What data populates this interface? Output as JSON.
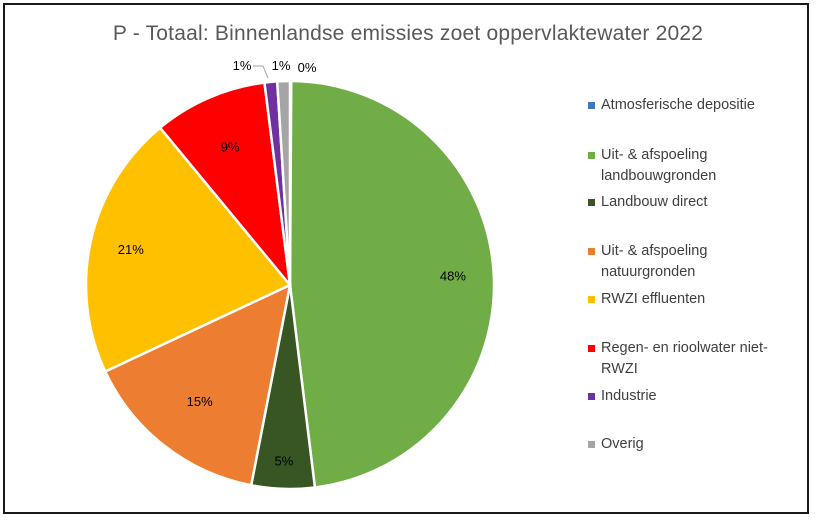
{
  "chart_data": {
    "type": "pie",
    "title": "P - Totaal: Binnenlandse emissies zoet oppervlaktewater 2022",
    "legend_position": "right",
    "slices": [
      {
        "name": "Atmosferische depositie",
        "value": 0.1,
        "label": "0%",
        "color": "#4472C4"
      },
      {
        "name": "Uit- & afspoeling landbouwgronden",
        "value": 48,
        "label": "48%",
        "color": "#70AD47"
      },
      {
        "name": "Landbouw direct",
        "value": 5,
        "label": "5%",
        "color": "#375623"
      },
      {
        "name": "Uit- & afspoeling natuurgronden",
        "value": 15,
        "label": "15%",
        "color": "#ED7D31"
      },
      {
        "name": "RWZI effluenten",
        "value": 21,
        "label": "21%",
        "color": "#FFC000"
      },
      {
        "name": "Regen- en rioolwater niet-RWZI",
        "value": 9,
        "label": "9%",
        "color": "#FF0000"
      },
      {
        "name": "Industrie",
        "value": 1,
        "label": "1%",
        "color": "#7030A0"
      },
      {
        "name": "Overig",
        "value": 1,
        "label": "1%",
        "color": "#A5A5A5"
      }
    ]
  }
}
